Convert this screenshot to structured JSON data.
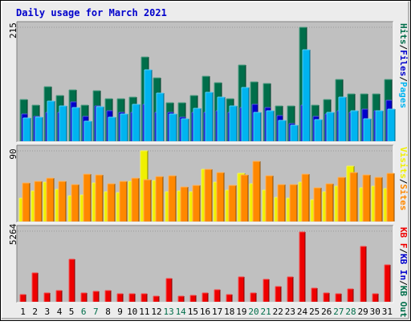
{
  "title": "Daily usage for March 2021",
  "colors": {
    "page_bg": "#ECECEC",
    "plot_bg": "#C0C0C0",
    "title": "#0000CC",
    "hits": "#006E4A",
    "files": "#0000CC",
    "pages": "#00B4F0",
    "visits": "#F0F000",
    "sites": "#FF8800",
    "kbf": "#EE0000",
    "kbin": "#0000CC",
    "kbout": "#006E4A",
    "weekday_label": "#000000",
    "weekend_label": "#006E4A"
  },
  "chart_data": {
    "type": "bar",
    "days": [
      "1",
      "2",
      "3",
      "4",
      "5",
      "6",
      "7",
      "8",
      "9",
      "10",
      "11",
      "12",
      "13",
      "14",
      "15",
      "16",
      "17",
      "18",
      "19",
      "20",
      "21",
      "22",
      "23",
      "24",
      "25",
      "26",
      "27",
      "28",
      "29",
      "30",
      "31"
    ],
    "weekend_days": [
      "6",
      "7",
      "13",
      "14",
      "20",
      "21",
      "27",
      "28"
    ],
    "panels": [
      {
        "id": "hits_files_pages",
        "max_label": "215",
        "ymax": 215,
        "legend": [
          {
            "text": "Hits",
            "key": "hits"
          },
          {
            "text": "/",
            "key": "sep"
          },
          {
            "text": "Files",
            "key": "files"
          },
          {
            "text": "/",
            "key": "sep"
          },
          {
            "text": "Pages",
            "key": "pages"
          }
        ],
        "series": [
          {
            "key": "hits",
            "values": [
              79,
              68,
              103,
              87,
              97,
              68,
              95,
              80,
              81,
              84,
              159,
              120,
              73,
              72,
              87,
              122,
              111,
              80,
              144,
              112,
              109,
              67,
              67,
              215,
              68,
              78,
              117,
              89,
              89,
              89,
              117
            ]
          },
          {
            "key": "files",
            "values": [
              51,
              47,
              54,
              54,
              74,
              47,
              66,
              57,
              54,
              55,
              70,
              55,
              55,
              45,
              55,
              55,
              58,
              55,
              63,
              70,
              64,
              48,
              34,
              68,
              47,
              52,
              57,
              55,
              61,
              57,
              77
            ]
          },
          {
            "key": "pages",
            "values": [
              44,
              45,
              76,
              67,
              63,
              38,
              65,
              45,
              51,
              69,
              135,
              91,
              51,
              43,
              62,
              92,
              84,
              67,
              102,
              54,
              57,
              40,
              30,
              172,
              41,
              54,
              84,
              57,
              42,
              58,
              60
            ]
          }
        ]
      },
      {
        "id": "visits_sites",
        "max_label": "90",
        "ymax": 90,
        "legend": [
          {
            "text": "Visits",
            "key": "visits"
          },
          {
            "text": "/",
            "key": "sep"
          },
          {
            "text": "Sites",
            "key": "sites"
          }
        ],
        "series": [
          {
            "key": "visits",
            "values": [
              30,
              39,
              50,
              41,
              33,
              34,
              49,
              38,
              37,
              51,
              90,
              52,
              38,
              39,
              38,
              66,
              50,
              40,
              61,
              48,
              40,
              31,
              30,
              50,
              28,
              38,
              45,
              71,
              43,
              45,
              42
            ]
          },
          {
            "key": "sites",
            "values": [
              49,
              51,
              55,
              51,
              47,
              60,
              59,
              48,
              51,
              55,
              53,
              57,
              58,
              44,
              46,
              66,
              62,
              46,
              59,
              77,
              58,
              47,
              47,
              60,
              43,
              48,
              56,
              62,
              59,
              56,
              61
            ]
          }
        ]
      },
      {
        "id": "kbytes",
        "max_label": "5264",
        "ymax": 5264,
        "legend": [
          {
            "text": "KB F",
            "key": "kbf"
          },
          {
            "text": "/",
            "key": "sep"
          },
          {
            "text": "KB In",
            "key": "kbin"
          },
          {
            "text": "/",
            "key": "sep"
          },
          {
            "text": "KB Out",
            "key": "kbout"
          }
        ],
        "series": [
          {
            "key": "kbf",
            "values": [
              560,
              2160,
              640,
              810,
              3200,
              640,
              780,
              810,
              600,
              600,
              600,
              410,
              1760,
              410,
              450,
              650,
              910,
              510,
              1880,
              670,
              1660,
              1110,
              1870,
              5200,
              1030,
              640,
              610,
              930,
              4100,
              610,
              2760
            ]
          }
        ]
      }
    ]
  }
}
